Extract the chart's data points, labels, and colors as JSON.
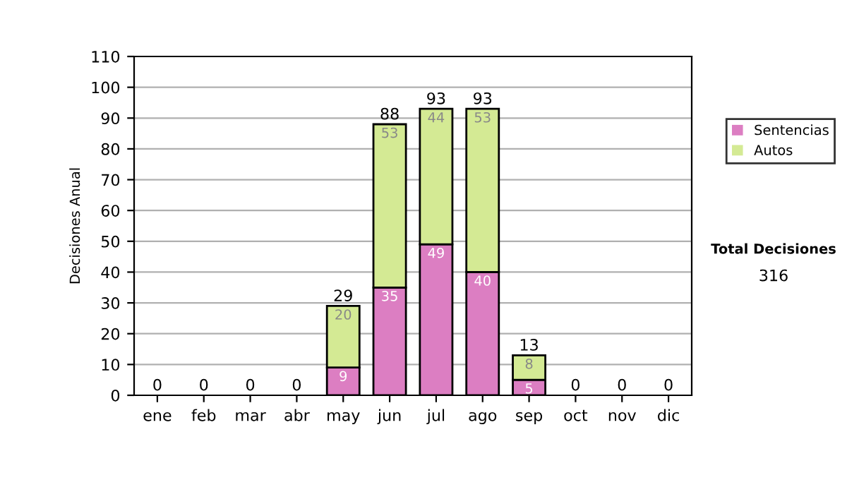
{
  "chart_data": {
    "type": "bar",
    "stacked": true,
    "ylabel": "Decisiones Anual",
    "categories": [
      "ene",
      "feb",
      "mar",
      "abr",
      "may",
      "jun",
      "jul",
      "ago",
      "sep",
      "oct",
      "nov",
      "dic"
    ],
    "series": [
      {
        "name": "Sentencias",
        "color": "#dc7ec2",
        "values": [
          0,
          0,
          0,
          0,
          9,
          35,
          49,
          40,
          5,
          0,
          0,
          0
        ],
        "value_labels": [
          null,
          null,
          null,
          null,
          "9",
          "35",
          "49",
          "40",
          "5",
          null,
          null,
          null
        ]
      },
      {
        "name": "Autos",
        "color": "#d4ea94",
        "values": [
          0,
          0,
          0,
          0,
          20,
          53,
          44,
          53,
          8,
          0,
          0,
          0
        ],
        "value_labels": [
          null,
          null,
          null,
          null,
          "20",
          "53",
          "44",
          "53",
          "8",
          null,
          null,
          null
        ]
      }
    ],
    "totals": [
      "0",
      "0",
      "0",
      "0",
      "29",
      "88",
      "93",
      "93",
      "13",
      "0",
      "0",
      "0"
    ],
    "ylim": [
      0,
      110
    ],
    "yticks": [
      0,
      10,
      20,
      30,
      40,
      50,
      60,
      70,
      80,
      90,
      100,
      110
    ],
    "grid": "y",
    "legend": "right",
    "annotations": [
      "Total Decisiones",
      "316"
    ]
  }
}
